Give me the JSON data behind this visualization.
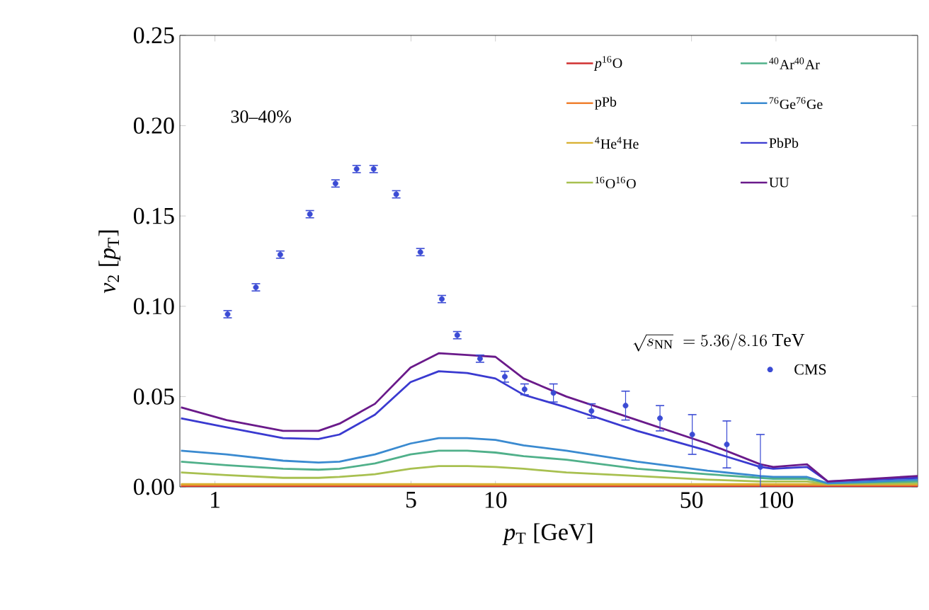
{
  "chart_data": {
    "type": "line",
    "xlabel": "*p*$_{T}$ [GeV]",
    "ylabel": "*v*$_{2}$ [*p*$_{T}$]",
    "annotations": [
      "30–40%",
      "\\sqrt{s_{\\mathrm{NN}}}\\ = 5.36/8.16\\ \\mathrm{TeV}"
    ],
    "log": "x",
    "xlim": [
      0.75,
      320
    ],
    "xticks": [
      1,
      5,
      10,
      50,
      100
    ],
    "ylim": [
      0,
      0.25
    ],
    "yticks": [
      {
        "value": 0,
        "label": "0.00"
      },
      {
        "value": 0.05,
        "label": "0.05"
      },
      {
        "value": 0.1,
        "label": "0.10"
      },
      {
        "value": 0.15,
        "label": "0.15"
      },
      {
        "value": 0.2,
        "label": "0.20"
      },
      {
        "value": 0.25,
        "label": "0.25"
      }
    ],
    "legend": "top right",
    "x": [
      0.757,
      1.1,
      1.75,
      2.34,
      2.78,
      3.72,
      4.98,
      6.28,
      7.93,
      10.0,
      12.6,
      17.9,
      32.0,
      57.0,
      88.0,
      97.8,
      129,
      153,
      320
    ],
    "series": [
      {
        "name": "*p*$^{16}$O",
        "color": "#d03030",
        "marker": "none",
        "values": [
          0.0005,
          0.0005,
          0.0005,
          0.0005,
          0.0005,
          0.0005,
          0.0005,
          0.0005,
          0.0005,
          0.0005,
          0.0005,
          0.0005,
          0.0005,
          0.0005,
          0.0005,
          0.0005,
          0.0005,
          0.0005,
          0.0005
        ]
      },
      {
        "name": "pPb",
        "color": "#f08030",
        "marker": "none",
        "values": [
          0.001,
          0.001,
          0.001,
          0.001,
          0.001,
          0.001,
          0.001,
          0.001,
          0.001,
          0.001,
          0.001,
          0.001,
          0.001,
          0.001,
          0.001,
          0.001,
          0.001,
          0.001,
          0.001
        ]
      },
      {
        "name": "$^{4}$He$^{4}$He",
        "color": "#d8b030",
        "marker": "none",
        "values": [
          0.0015,
          0.0015,
          0.0015,
          0.0015,
          0.0015,
          0.0015,
          0.0015,
          0.0015,
          0.0015,
          0.0015,
          0.0015,
          0.0015,
          0.0015,
          0.0015,
          0.0015,
          0.0015,
          0.0015,
          0.0015,
          0.0015
        ]
      },
      {
        "name": "$^{16}$O$^{16}$O",
        "color": "#a8c050",
        "marker": "none",
        "values": [
          0.008,
          0.0065,
          0.005,
          0.005,
          0.0055,
          0.007,
          0.01,
          0.0115,
          0.0115,
          0.011,
          0.01,
          0.008,
          0.006,
          0.004,
          0.003,
          0.003,
          0.003,
          0.0015,
          0.002
        ]
      },
      {
        "name": "$^{40}$Ar$^{40}$Ar",
        "color": "#50b08a",
        "marker": "none",
        "values": [
          0.014,
          0.012,
          0.01,
          0.0095,
          0.01,
          0.013,
          0.018,
          0.02,
          0.02,
          0.019,
          0.017,
          0.015,
          0.01,
          0.007,
          0.005,
          0.0045,
          0.0045,
          0.002,
          0.003
        ]
      },
      {
        "name": "$^{76}$Ge$^{76}$Ge",
        "color": "#3a8ad0",
        "marker": "none",
        "values": [
          0.02,
          0.018,
          0.0145,
          0.0135,
          0.014,
          0.018,
          0.024,
          0.027,
          0.027,
          0.026,
          0.023,
          0.02,
          0.014,
          0.009,
          0.006,
          0.0055,
          0.0055,
          0.002,
          0.004
        ]
      },
      {
        "name": "PbPb",
        "color": "#3a3ad0",
        "marker": "none",
        "values": [
          0.038,
          0.033,
          0.027,
          0.0265,
          0.029,
          0.04,
          0.058,
          0.064,
          0.063,
          0.06,
          0.051,
          0.044,
          0.031,
          0.02,
          0.011,
          0.01,
          0.011,
          0.003,
          0.005
        ]
      },
      {
        "name": "UU",
        "color": "#6a1a8a",
        "marker": "none",
        "values": [
          0.044,
          0.037,
          0.031,
          0.031,
          0.035,
          0.046,
          0.066,
          0.074,
          0.073,
          0.072,
          0.06,
          0.05,
          0.037,
          0.024,
          0.0125,
          0.011,
          0.0125,
          0.003,
          0.006
        ]
      },
      {
        "name": "CMS",
        "type": "scatter",
        "color": "#3b4bd4",
        "marker": "circle",
        "x": [
          1.11,
          1.4,
          1.71,
          2.18,
          2.69,
          3.2,
          3.68,
          4.43,
          5.4,
          6.44,
          7.31,
          8.81,
          10.8,
          12.7,
          16.1,
          22.0,
          29.1,
          38.6,
          50.3,
          66.8,
          88.0
        ],
        "values": [
          0.0956,
          0.1105,
          0.1286,
          0.151,
          0.168,
          0.176,
          0.176,
          0.162,
          0.13,
          0.104,
          0.084,
          0.071,
          0.061,
          0.054,
          0.052,
          0.042,
          0.045,
          0.038,
          0.029,
          0.0235,
          0.011
        ],
        "errors": [
          0.002,
          0.002,
          0.002,
          0.002,
          0.002,
          0.002,
          0.002,
          0.002,
          0.002,
          0.002,
          0.002,
          0.002,
          0.003,
          0.003,
          0.005,
          0.004,
          0.008,
          0.007,
          0.011,
          0.013,
          0.018
        ]
      }
    ]
  }
}
